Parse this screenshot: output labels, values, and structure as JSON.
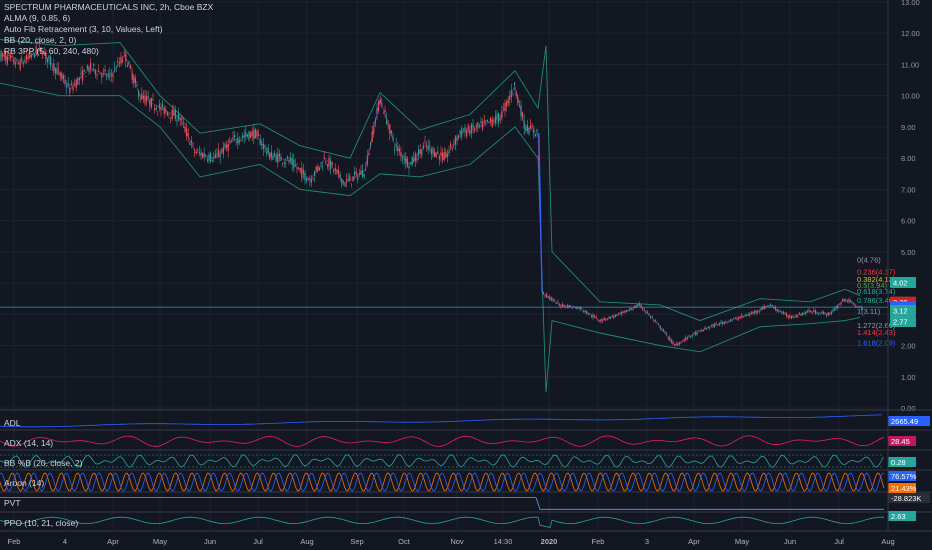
{
  "legend": {
    "title": "SPECTRUM PHARMACEUTICALS INC, 2h, Cboe BZX",
    "indicators": [
      "ALMA (9, 0.85, 6)",
      "Auto Fib Retracement (3, 10, Values, Left)",
      "BB (20, close, 2, 0)",
      "RB 3PP (5, 60, 240, 480)"
    ]
  },
  "panes": [
    {
      "label": "ADL",
      "value": "2665.49",
      "badge_color": "#2962ff"
    },
    {
      "label": "ADX (14, 14)",
      "value": "28.45",
      "badge_color": "#c2185b"
    },
    {
      "label": "BB %B (20, close, 2)",
      "value": "0.28",
      "badge_color": "#26a69a"
    },
    {
      "label": "Aroon (14)",
      "value": "76.57%",
      "value2": "21.43%",
      "badge_color": "#2962ff",
      "badge_color2": "#ff6d00"
    },
    {
      "label": "PVT",
      "value": "-28.823K",
      "badge_color": "#2a2e39"
    },
    {
      "label": "PPO (10, 21, close)",
      "value": "2.63",
      "badge_color": "#26a69a"
    }
  ],
  "price_badges": [
    {
      "value": "4.02",
      "color": "#26a69a"
    },
    {
      "value": "3.39",
      "color": "#c62828"
    },
    {
      "value": "3.23",
      "color": "#2962ff"
    },
    {
      "value": "3.12",
      "color": "#26a69a"
    },
    {
      "value": "2.77",
      "color": "#26a69a"
    }
  ],
  "fib_levels": [
    {
      "label": "0(4.76)",
      "value": 4.76,
      "color": "#9598a1"
    },
    {
      "label": "0.236(4.37)",
      "value": 4.37,
      "color": "#f23645"
    },
    {
      "label": "0.382(4.13)",
      "value": 4.13,
      "color": "#c0ca33"
    },
    {
      "label": "0.5(3.94)",
      "value": 3.94,
      "color": "#4caf50"
    },
    {
      "label": "0.618(3.74)",
      "value": 3.74,
      "color": "#26a69a"
    },
    {
      "label": "0.786(3.46)",
      "value": 3.46,
      "color": "#26a69a"
    },
    {
      "label": "1(3.11)",
      "value": 3.11,
      "color": "#9598a1"
    },
    {
      "label": "1.272(2.66)",
      "value": 2.66,
      "color": "#9598a1"
    },
    {
      "label": "1.414(2.43)",
      "value": 2.43,
      "color": "#f23645"
    },
    {
      "label": "1.618(2.09)",
      "value": 2.09,
      "color": "#2962ff"
    }
  ],
  "chart_data": {
    "type": "candlestick",
    "title": "SPECTRUM PHARMACEUTICALS INC, 2h, Cboe BZX",
    "y_ticks": [
      "13.00",
      "12.00",
      "11.00",
      "10.00",
      "9.00",
      "8.00",
      "7.00",
      "6.00",
      "5.00",
      "4.00",
      "3.00",
      "2.00",
      "1.00",
      "0.00"
    ],
    "ylim": [
      0,
      13
    ],
    "x_ticks": [
      "Feb",
      "4",
      "Apr",
      "May",
      "Jun",
      "Jul",
      "Aug",
      "Sep",
      "Oct",
      "Nov",
      "14:30",
      "2020",
      "Feb",
      "3",
      "Apr",
      "May",
      "Jun",
      "Jul",
      "Aug"
    ],
    "x_tick_bold": "2020",
    "price_path": [
      [
        0,
        11.3
      ],
      [
        20,
        11.0
      ],
      [
        40,
        11.5
      ],
      [
        55,
        10.9
      ],
      [
        70,
        10.2
      ],
      [
        90,
        10.9
      ],
      [
        110,
        10.6
      ],
      [
        125,
        11.3
      ],
      [
        140,
        10.0
      ],
      [
        160,
        9.6
      ],
      [
        180,
        9.3
      ],
      [
        195,
        8.2
      ],
      [
        215,
        8.0
      ],
      [
        235,
        8.6
      ],
      [
        255,
        8.8
      ],
      [
        270,
        8.1
      ],
      [
        290,
        7.9
      ],
      [
        310,
        7.3
      ],
      [
        325,
        8.0
      ],
      [
        345,
        7.2
      ],
      [
        365,
        7.6
      ],
      [
        380,
        9.9
      ],
      [
        395,
        8.4
      ],
      [
        410,
        7.8
      ],
      [
        425,
        8.4
      ],
      [
        445,
        8.0
      ],
      [
        460,
        8.8
      ],
      [
        480,
        9.0
      ],
      [
        500,
        9.3
      ],
      [
        515,
        10.3
      ],
      [
        525,
        9.0
      ],
      [
        538,
        8.8
      ],
      [
        542,
        3.7
      ],
      [
        560,
        3.3
      ],
      [
        580,
        3.2
      ],
      [
        600,
        2.8
      ],
      [
        620,
        3.0
      ],
      [
        640,
        3.3
      ],
      [
        660,
        2.6
      ],
      [
        675,
        2.0
      ],
      [
        690,
        2.3
      ],
      [
        710,
        2.6
      ],
      [
        730,
        2.8
      ],
      [
        750,
        3.0
      ],
      [
        770,
        3.3
      ],
      [
        790,
        2.9
      ],
      [
        810,
        3.1
      ],
      [
        830,
        3.0
      ],
      [
        845,
        3.5
      ],
      [
        860,
        3.2
      ]
    ],
    "bb_upper": [
      [
        0,
        11.8
      ],
      [
        60,
        11.6
      ],
      [
        120,
        11.7
      ],
      [
        160,
        10.0
      ],
      [
        200,
        8.8
      ],
      [
        260,
        9.1
      ],
      [
        300,
        8.4
      ],
      [
        350,
        8.0
      ],
      [
        380,
        10.1
      ],
      [
        420,
        8.9
      ],
      [
        470,
        9.4
      ],
      [
        515,
        10.8
      ],
      [
        538,
        9.6
      ],
      [
        546,
        11.6
      ],
      [
        552,
        5.0
      ],
      [
        600,
        3.4
      ],
      [
        660,
        3.3
      ],
      [
        700,
        2.8
      ],
      [
        760,
        3.5
      ],
      [
        810,
        3.4
      ],
      [
        845,
        3.8
      ],
      [
        860,
        3.6
      ]
    ],
    "bb_lower": [
      [
        0,
        10.4
      ],
      [
        60,
        10.0
      ],
      [
        120,
        10.0
      ],
      [
        160,
        9.0
      ],
      [
        200,
        7.4
      ],
      [
        260,
        7.8
      ],
      [
        300,
        7.0
      ],
      [
        350,
        6.8
      ],
      [
        380,
        7.5
      ],
      [
        420,
        7.4
      ],
      [
        470,
        7.8
      ],
      [
        515,
        9.0
      ],
      [
        538,
        8.0
      ],
      [
        546,
        0.5
      ],
      [
        552,
        2.8
      ],
      [
        600,
        2.4
      ],
      [
        660,
        2.0
      ],
      [
        700,
        1.8
      ],
      [
        760,
        2.6
      ],
      [
        810,
        2.7
      ],
      [
        845,
        2.8
      ],
      [
        860,
        2.9
      ]
    ],
    "horizontal_line": 3.23
  }
}
